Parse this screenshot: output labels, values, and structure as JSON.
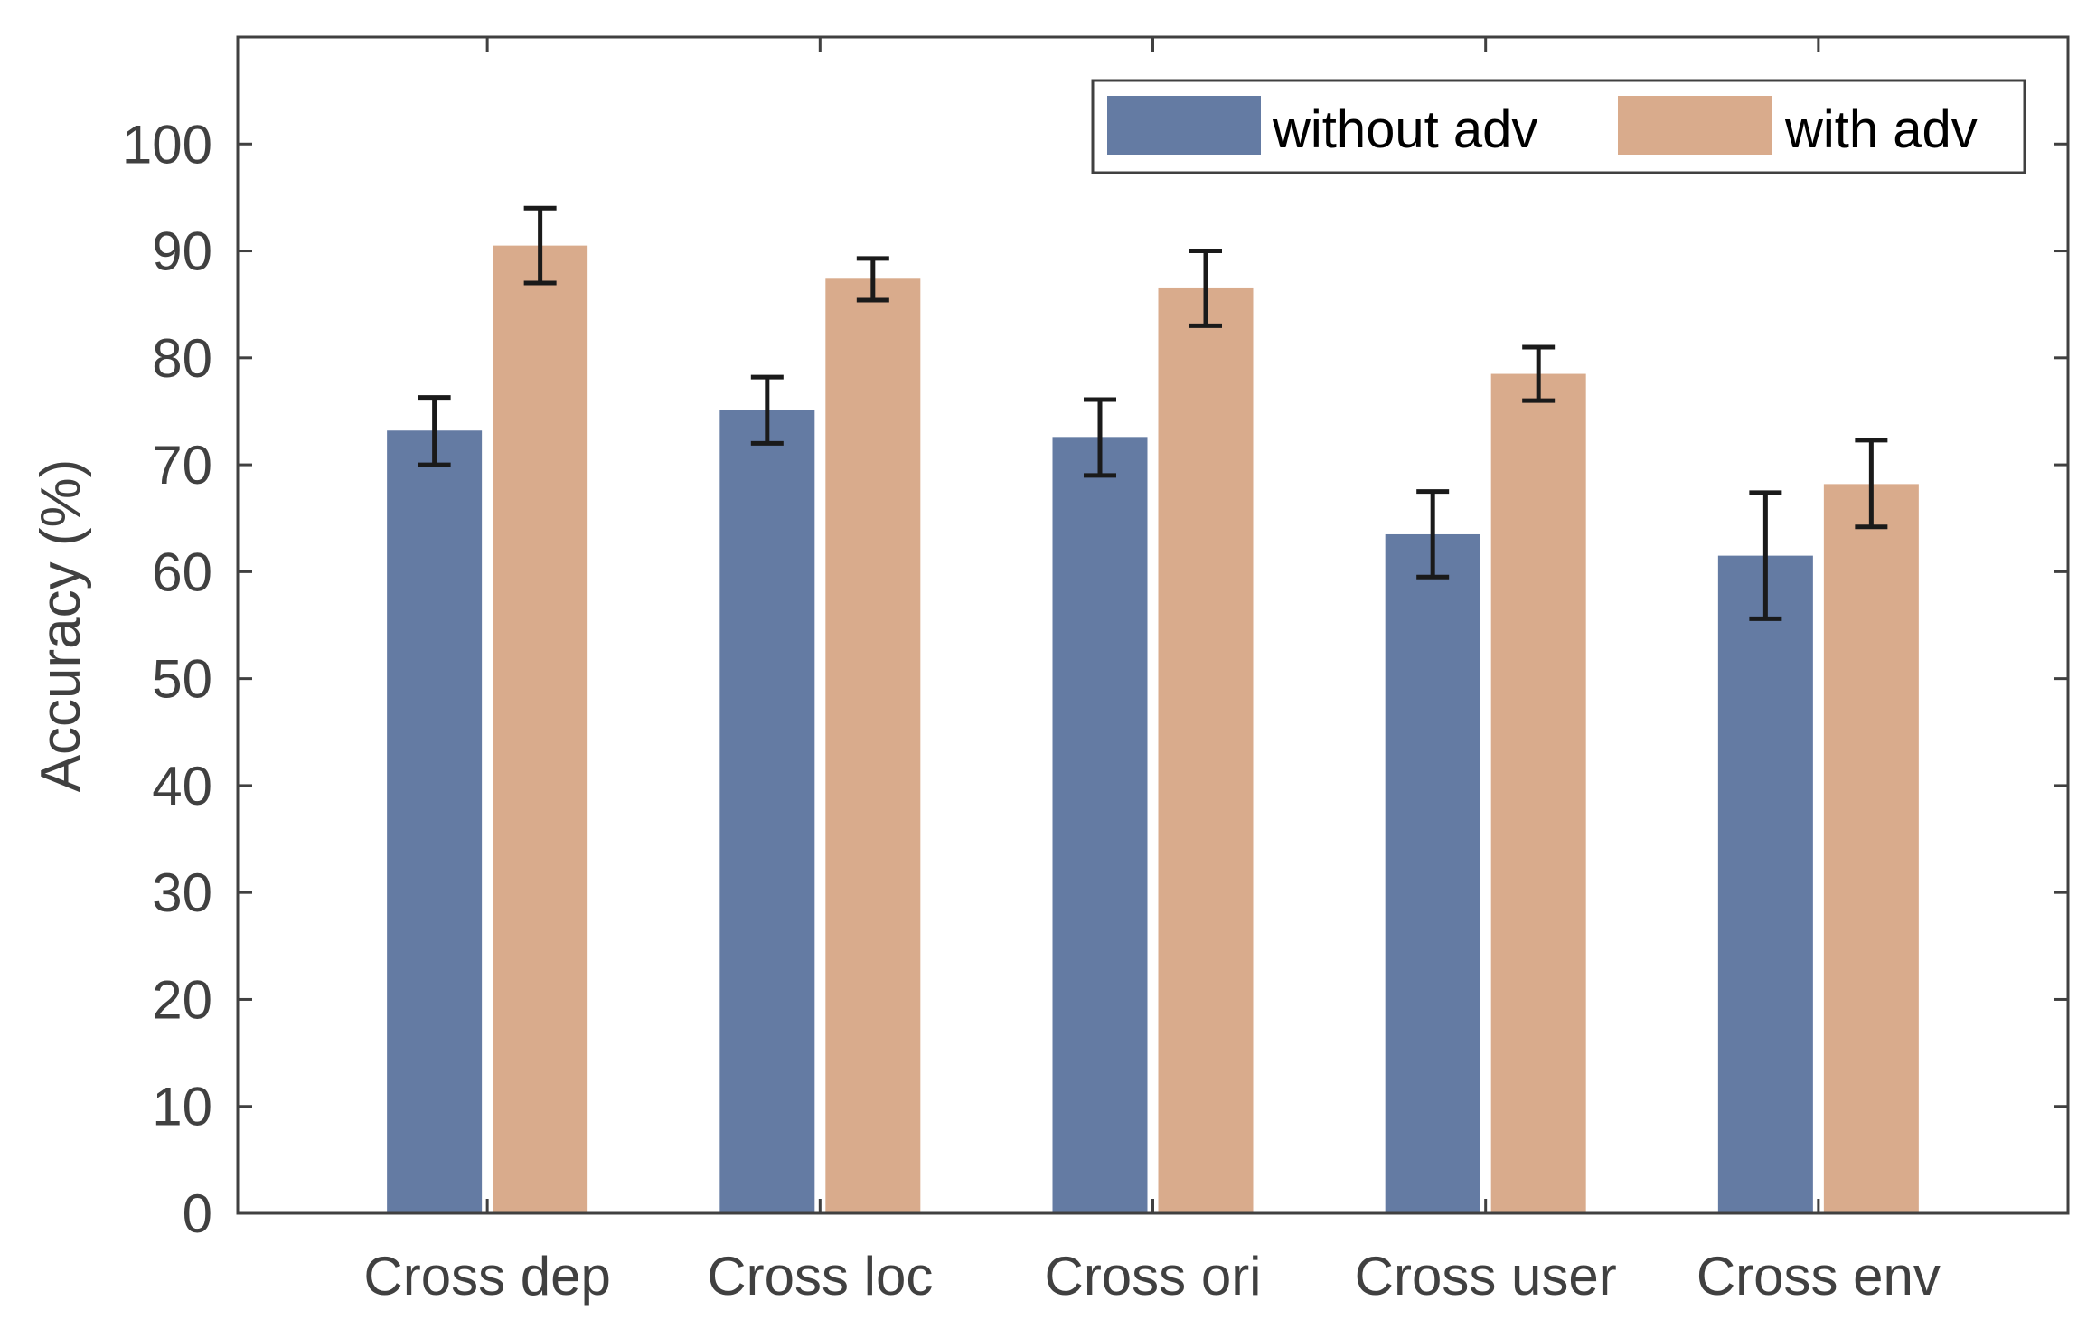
{
  "chart_data": {
    "type": "bar",
    "title": "",
    "xlabel": "",
    "ylabel": "Accuracy (%)",
    "ylim": [
      0,
      110
    ],
    "yticks": [
      0,
      10,
      20,
      30,
      40,
      50,
      60,
      70,
      80,
      90,
      100
    ],
    "grid": false,
    "legend_position": "top-right",
    "categories": [
      "Cross dep",
      "Cross loc",
      "Cross ori",
      "Cross user",
      "Cross env"
    ],
    "series": [
      {
        "name": "without adv",
        "color": "#647ba3",
        "values": [
          73.2,
          75.1,
          72.6,
          63.5,
          61.5
        ],
        "error_low": [
          70.0,
          72.0,
          69.0,
          59.5,
          55.6
        ],
        "error_high": [
          76.3,
          78.2,
          76.1,
          67.5,
          67.4
        ]
      },
      {
        "name": "with adv",
        "color": "#d9ab8c",
        "values": [
          90.5,
          87.4,
          86.5,
          78.5,
          68.2
        ],
        "error_low": [
          87.0,
          85.4,
          83.0,
          76.0,
          64.2
        ],
        "error_high": [
          94.0,
          89.3,
          90.0,
          81.0,
          72.3
        ]
      }
    ]
  }
}
